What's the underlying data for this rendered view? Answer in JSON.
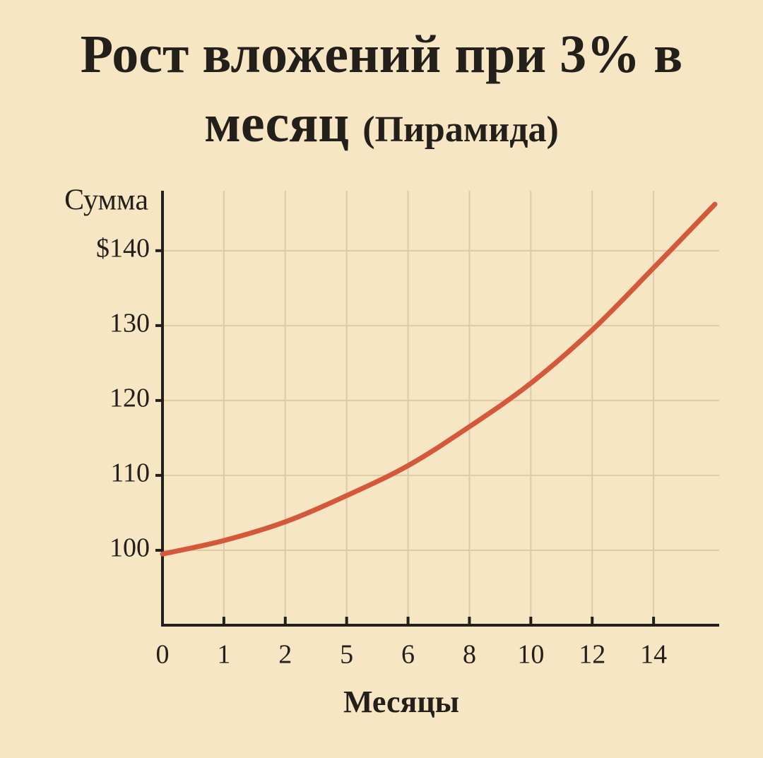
{
  "chart_data": {
    "type": "line",
    "title": "Рост вложений при 3% в месяц",
    "subtitle": "(Пирамида)",
    "y_label": "Сумма",
    "x_label": "Месяцы",
    "categories": [
      "0",
      "1",
      "2",
      "5",
      "6",
      "8",
      "10",
      "12",
      "14",
      null
    ],
    "values": [
      99.5,
      101.3,
      103.8,
      107.3,
      111.3,
      116.5,
      122.3,
      129.4,
      137.7,
      146.2
    ],
    "color": "#d4583a",
    "ylim": [
      90,
      148
    ],
    "yticks": [
      100,
      110,
      120,
      130,
      {
        "value": 140,
        "label": "$140"
      }
    ],
    "grid": true
  }
}
